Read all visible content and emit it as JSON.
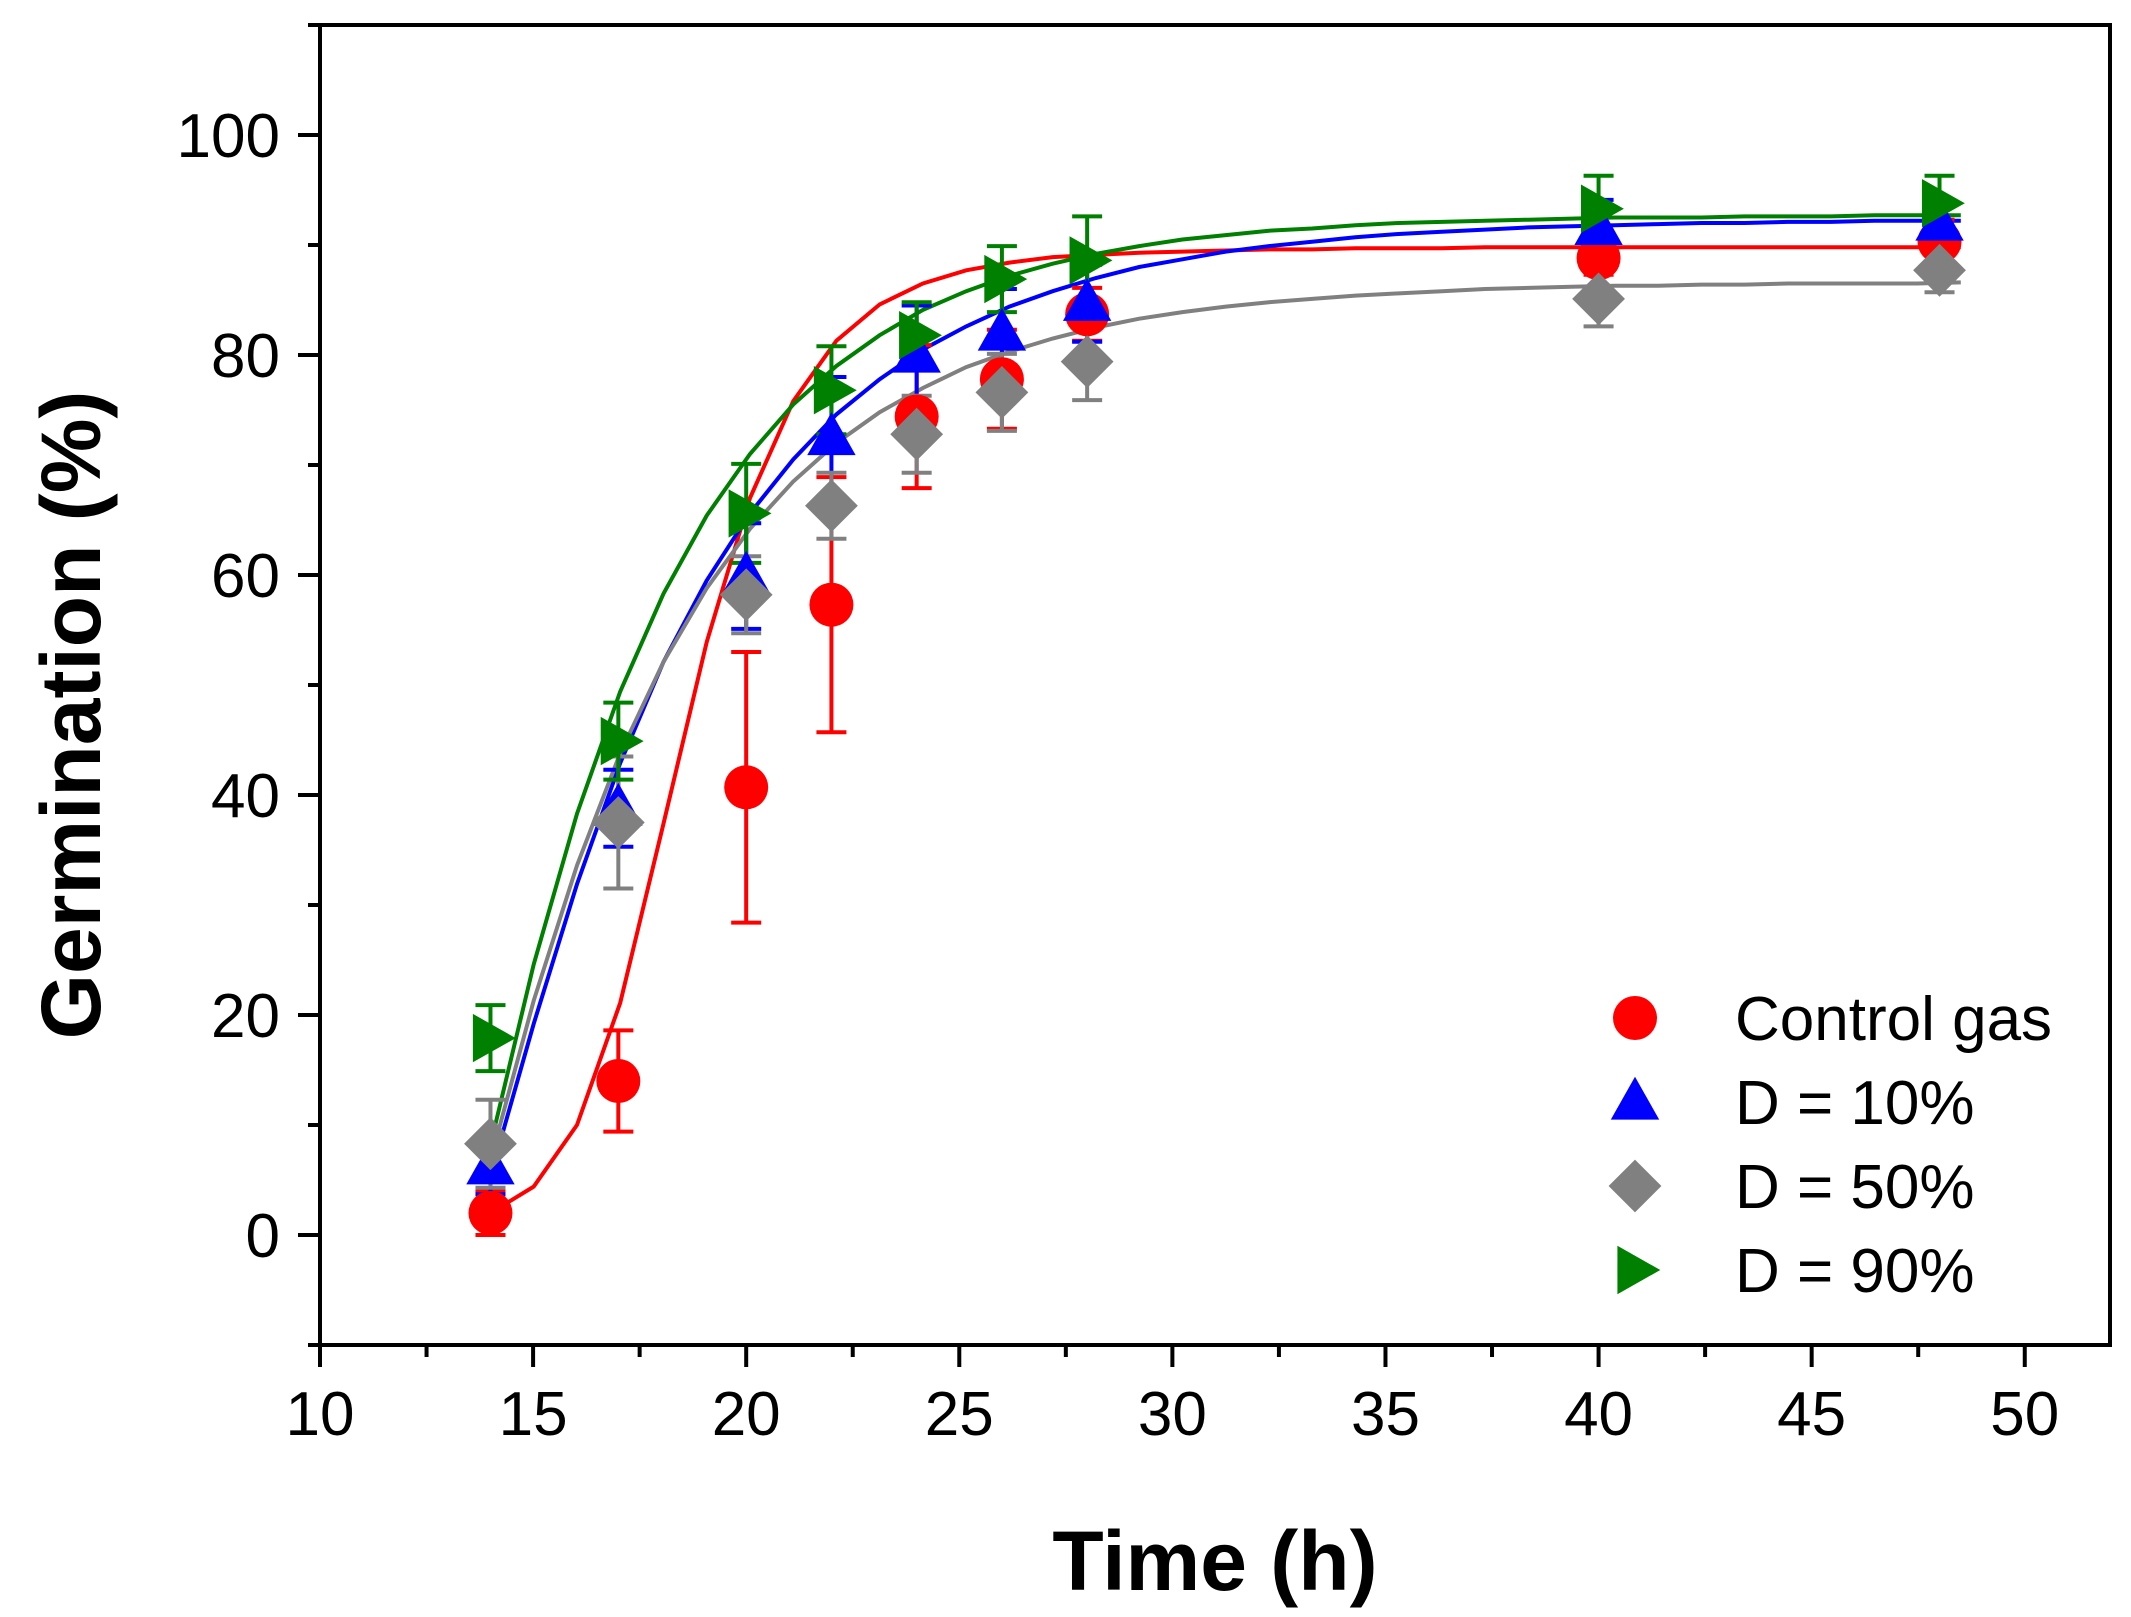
{
  "chart_data": {
    "type": "scatter",
    "title": "",
    "xlabel": "Time (h)",
    "ylabel": "Germination (%)",
    "xlim": [
      10,
      52
    ],
    "ylim": [
      -10,
      110
    ],
    "x_ticks": [
      10,
      15,
      20,
      25,
      30,
      35,
      40,
      45,
      50
    ],
    "y_ticks": [
      0,
      20,
      40,
      60,
      80,
      100
    ],
    "grid": false,
    "legend_position": "bottom-right",
    "x": [
      14,
      17,
      20,
      22,
      24,
      26,
      28,
      40,
      48
    ],
    "series": [
      {
        "name": "Control gas",
        "marker": "circle",
        "color": "#ff0000",
        "values": [
          2,
          14,
          40.7,
          57.3,
          74.4,
          77.8,
          83.7,
          88.8,
          90.3
        ],
        "errors": [
          2,
          4.6,
          12.3,
          11.6,
          6.5,
          4.5,
          2.4,
          1.5,
          2.0
        ],
        "fit": [
          2,
          4.4,
          10.0,
          21.1,
          37.4,
          53.9,
          67.0,
          75.8,
          81.3,
          84.6,
          86.5,
          87.7,
          88.4,
          88.9,
          89.1,
          89.3,
          89.4,
          89.5,
          89.6,
          89.6,
          89.7,
          89.7,
          89.7,
          89.8,
          89.8,
          89.8,
          89.8,
          89.8,
          89.8,
          89.8,
          89.8,
          89.8,
          89.8,
          89.8,
          89.8
        ]
      },
      {
        "name": "D = 10%",
        "marker": "triangle-up",
        "color": "#0000ff",
        "values": [
          6.2,
          38.8,
          59.9,
          72.5,
          80.0,
          82.0,
          84.7,
          91.6,
          92.0
        ],
        "errors": [
          2.5,
          3.5,
          4.8,
          5.5,
          4.5,
          4.0,
          3.5,
          2.5,
          2.0
        ],
        "fit": [
          5.4,
          19.2,
          31.9,
          42.9,
          52.1,
          59.5,
          65.6,
          70.5,
          74.6,
          77.8,
          80.5,
          82.6,
          84.4,
          85.8,
          87.0,
          88.0,
          88.7,
          89.4,
          89.9,
          90.3,
          90.7,
          91.0,
          91.2,
          91.4,
          91.6,
          91.7,
          91.8,
          91.9,
          92.0,
          92.0,
          92.1,
          92.1,
          92.2,
          92.2,
          92.2
        ]
      },
      {
        "name": "D = 50%",
        "marker": "diamond",
        "color": "#808080",
        "values": [
          8.3,
          37.5,
          58.2,
          66.3,
          72.8,
          76.6,
          79.4,
          85.1,
          87.7
        ],
        "errors": [
          4.0,
          6.0,
          3.5,
          3.0,
          3.5,
          3.5,
          3.5,
          2.5,
          2.0
        ],
        "fit": [
          6.8,
          21.3,
          33.6,
          43.8,
          52.1,
          58.8,
          64.2,
          68.5,
          72.0,
          74.8,
          77.0,
          78.9,
          80.3,
          81.5,
          82.5,
          83.3,
          83.9,
          84.4,
          84.8,
          85.1,
          85.4,
          85.6,
          85.8,
          86.0,
          86.1,
          86.2,
          86.3,
          86.3,
          86.4,
          86.4,
          86.5,
          86.5,
          86.5,
          86.5,
          86.6
        ]
      },
      {
        "name": "D = 90%",
        "marker": "triangle-right",
        "color": "#008000",
        "values": [
          17.9,
          44.9,
          65.6,
          76.8,
          81.8,
          86.9,
          88.6,
          93.3,
          93.8
        ],
        "errors": [
          3.0,
          3.5,
          4.5,
          4.0,
          3.0,
          3.0,
          4.0,
          3.0,
          2.5
        ],
        "fit": [
          8.2,
          24.6,
          38.3,
          49.4,
          58.3,
          65.4,
          71.0,
          75.5,
          79.0,
          81.8,
          84.1,
          85.8,
          87.2,
          88.3,
          89.2,
          89.9,
          90.5,
          90.9,
          91.3,
          91.5,
          91.8,
          92.0,
          92.1,
          92.2,
          92.3,
          92.4,
          92.5,
          92.5,
          92.5,
          92.6,
          92.6,
          92.6,
          92.7,
          92.7,
          92.7
        ]
      }
    ]
  }
}
